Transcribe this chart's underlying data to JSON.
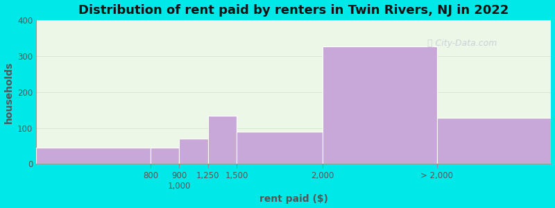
{
  "title": "Distribution of rent paid by renters in Twin Rivers, NJ in 2022",
  "xlabel": "rent paid ($)",
  "ylabel": "households",
  "bar_heights": [
    45,
    45,
    70,
    135,
    90,
    328,
    128
  ],
  "bar_lefts": [
    0,
    2,
    2.5,
    3,
    3.5,
    5,
    7
  ],
  "bar_widths": [
    2,
    0.5,
    0.5,
    0.5,
    1.5,
    2,
    2
  ],
  "bar_color": "#c8a8d8",
  "bar_edgecolor": "#ffffff",
  "background_color": "#00e8e8",
  "plot_bg_color": "#edf7e8",
  "ylim": [
    0,
    400
  ],
  "yticks": [
    0,
    100,
    200,
    300,
    400
  ],
  "grid_color": "#d8e8d0",
  "title_fontsize": 13,
  "axis_label_fontsize": 10,
  "tick_fontsize": 8.5,
  "watermark_text": "City-Data.com",
  "watermark_color": "#c0ccd4",
  "x_tick_positions": [
    2,
    2.5,
    3,
    3.5,
    5,
    7
  ],
  "x_tick_labels": [
    "800",
    "9001,000",
    "1,250",
    "1,500",
    "2,000",
    "> 2,000"
  ],
  "x_tick_labels_display": [
    "800",
    "900⁠\n1,000",
    "1,250",
    "1,500",
    "2,000",
    "> 2,000"
  ]
}
